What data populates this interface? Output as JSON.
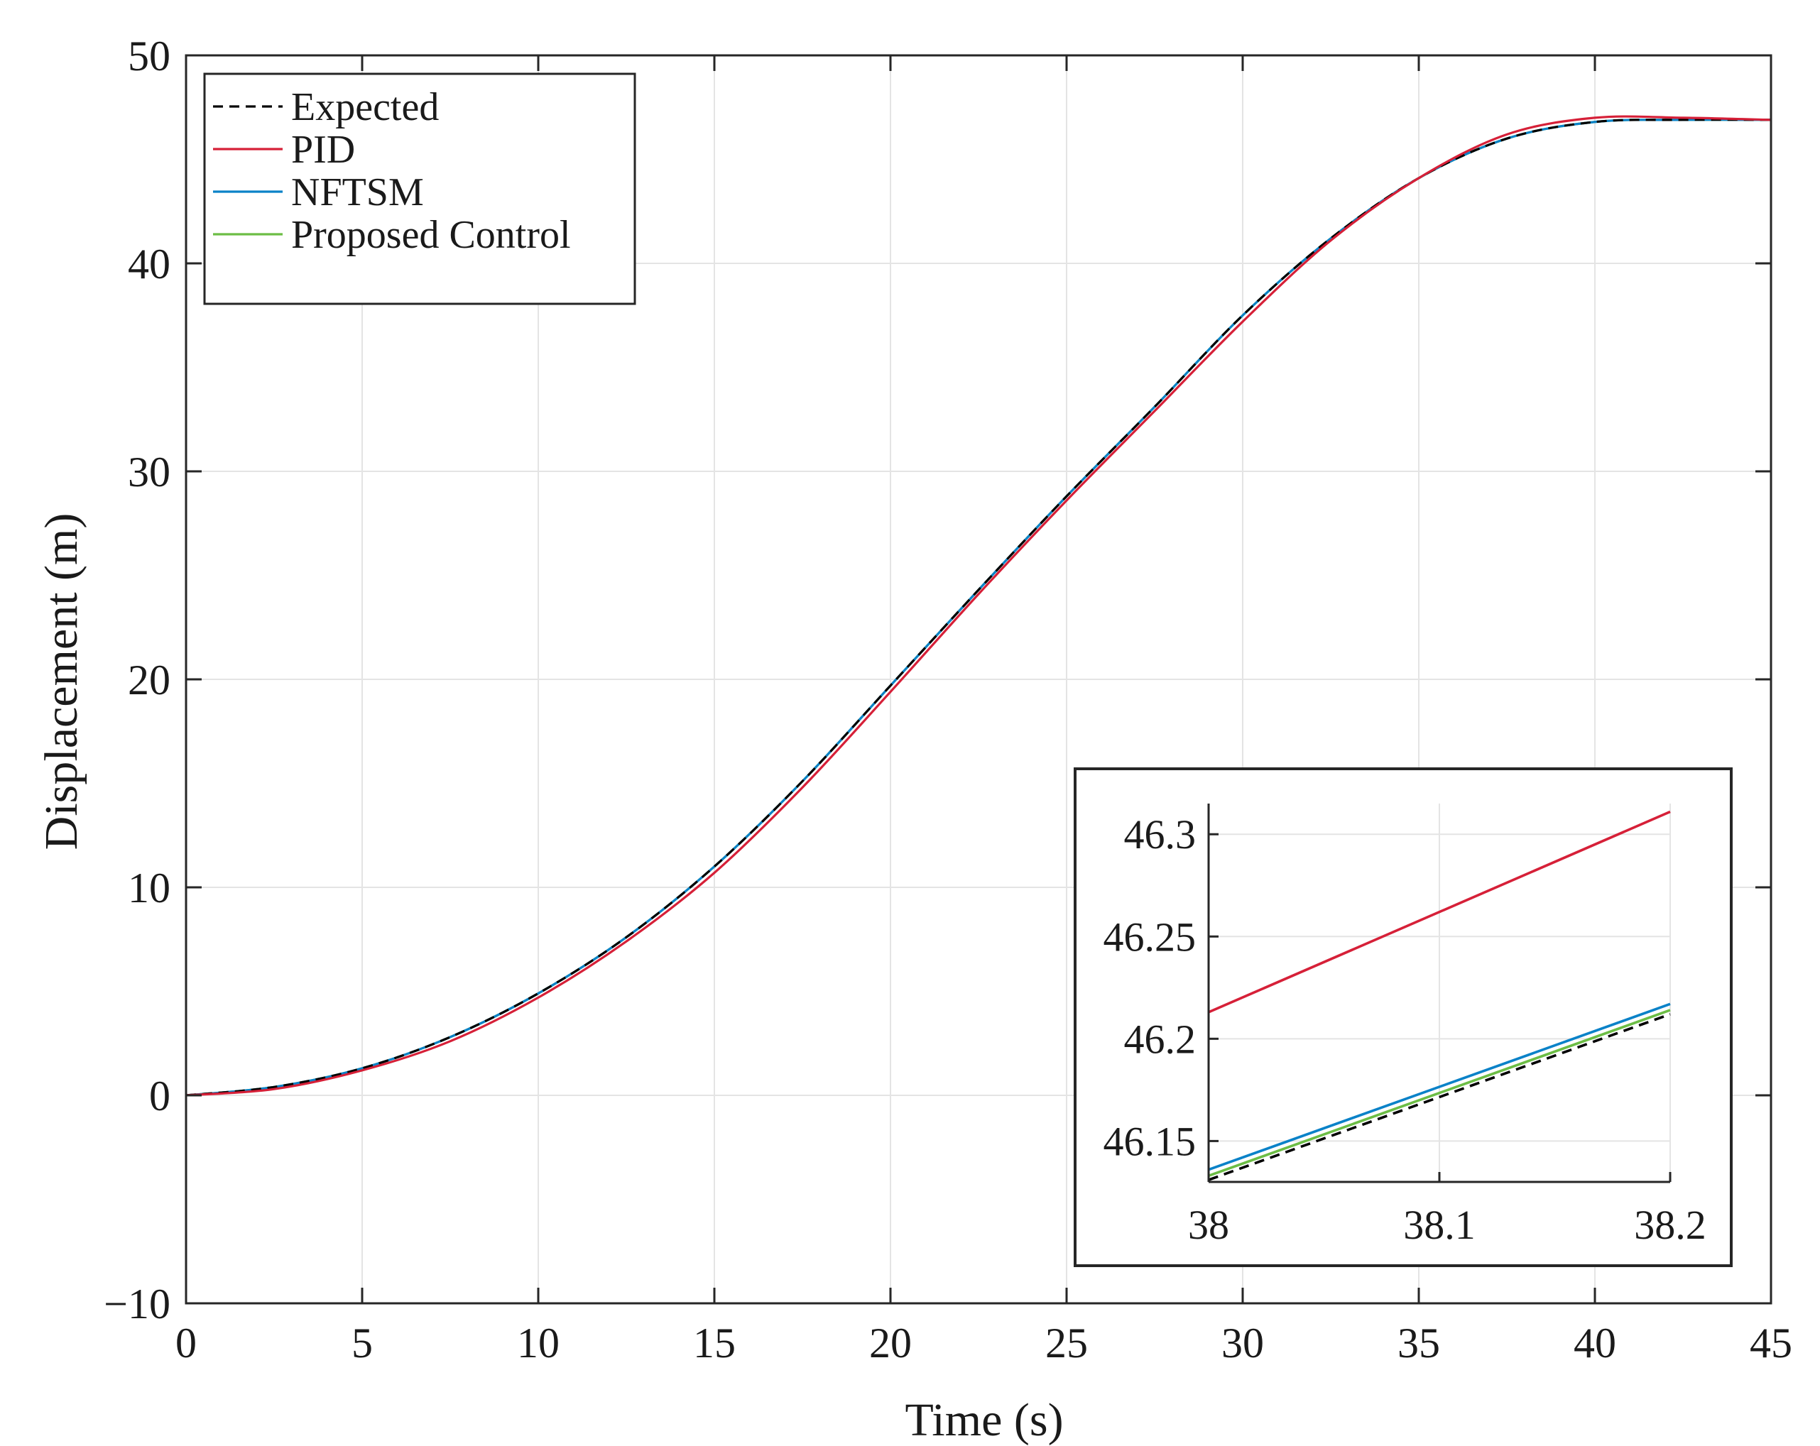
{
  "chart_data": [
    {
      "type": "line",
      "role": "main",
      "title": "",
      "xlabel": "Time (s)",
      "ylabel": "Displacement (m)",
      "xlim": [
        0,
        45
      ],
      "ylim": [
        -10,
        50
      ],
      "xticks": [
        0,
        5,
        10,
        15,
        20,
        25,
        30,
        35,
        40,
        45
      ],
      "yticks": [
        -10,
        0,
        10,
        20,
        30,
        40,
        50
      ],
      "xtick_labels": [
        "0",
        "5",
        "10",
        "15",
        "20",
        "25",
        "30",
        "35",
        "40",
        "45"
      ],
      "ytick_labels": [
        "−10",
        "0",
        "10",
        "20",
        "30",
        "40",
        "50"
      ],
      "grid": true,
      "legend_position": "top-left",
      "x": [
        0,
        2.5,
        5,
        7.5,
        10,
        12.5,
        15,
        17.5,
        20,
        22.5,
        25,
        27.5,
        30,
        32.5,
        35,
        37.5,
        40,
        42.5,
        45
      ],
      "series": [
        {
          "name": "Expected",
          "color": "#000000",
          "dash": "dashed",
          "values": [
            0,
            0.4,
            1.3,
            2.8,
            4.9,
            7.6,
            11.0,
            15.1,
            19.7,
            24.3,
            28.8,
            33.1,
            37.5,
            41.2,
            44.1,
            46.0,
            46.8,
            46.9,
            46.9
          ]
        },
        {
          "name": "PID",
          "color": "#d62038",
          "dash": "solid",
          "values": [
            0,
            0.3,
            1.2,
            2.6,
            4.7,
            7.4,
            10.7,
            14.8,
            19.4,
            24.1,
            28.6,
            32.9,
            37.2,
            41.1,
            44.1,
            46.2,
            47.0,
            47.0,
            46.9
          ]
        },
        {
          "name": "NFTSM",
          "color": "#0a82c8",
          "dash": "solid",
          "values": [
            0,
            0.4,
            1.3,
            2.8,
            4.9,
            7.6,
            11.0,
            15.1,
            19.7,
            24.3,
            28.8,
            33.1,
            37.5,
            41.2,
            44.1,
            46.0,
            46.8,
            46.9,
            46.9
          ]
        },
        {
          "name": "Proposed Control",
          "color": "#6cbd45",
          "dash": "solid",
          "values": [
            0,
            0.4,
            1.3,
            2.8,
            4.9,
            7.6,
            11.0,
            15.1,
            19.7,
            24.3,
            28.8,
            33.1,
            37.5,
            41.2,
            44.1,
            46.0,
            46.8,
            46.9,
            46.9
          ]
        }
      ]
    },
    {
      "type": "line",
      "role": "inset",
      "title": "",
      "xlabel": "",
      "ylabel": "",
      "xlim": [
        38,
        38.2
      ],
      "ylim": [
        46.13,
        46.315
      ],
      "xticks": [
        38,
        38.1,
        38.2
      ],
      "yticks": [
        46.15,
        46.2,
        46.25,
        46.3
      ],
      "xtick_labels": [
        "38",
        "38.1",
        "38.2"
      ],
      "ytick_labels": [
        "46.15",
        "46.2",
        "46.25",
        "46.3"
      ],
      "grid": true,
      "x": [
        38,
        38.2
      ],
      "series": [
        {
          "name": "Expected",
          "color": "#000000",
          "dash": "dashed",
          "values": [
            46.131,
            46.212
          ]
        },
        {
          "name": "PID",
          "color": "#d62038",
          "dash": "solid",
          "values": [
            46.213,
            46.311
          ]
        },
        {
          "name": "NFTSM",
          "color": "#0a82c8",
          "dash": "solid",
          "values": [
            46.136,
            46.217
          ]
        },
        {
          "name": "Proposed Control",
          "color": "#6cbd45",
          "dash": "solid",
          "values": [
            46.133,
            46.214
          ]
        }
      ]
    }
  ]
}
